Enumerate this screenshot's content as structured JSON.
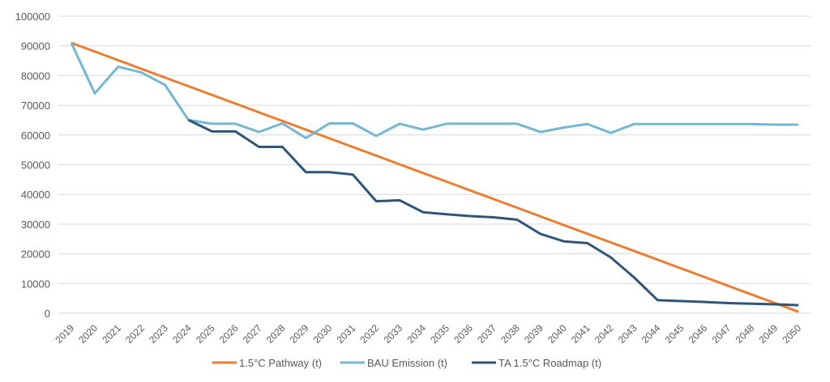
{
  "chart_data": {
    "type": "line",
    "title": "",
    "xlabel": "",
    "ylabel": "",
    "ylim": [
      0,
      100000
    ],
    "yticks": [
      "0",
      "10000",
      "20000",
      "30000",
      "40000",
      "50000",
      "60000",
      "70000",
      "80000",
      "90000",
      "100000"
    ],
    "ytick_values": [
      0,
      10000,
      20000,
      30000,
      40000,
      50000,
      60000,
      70000,
      80000,
      90000,
      100000
    ],
    "grid": true,
    "legend_position": "bottom",
    "categories": [
      "2019",
      "2020",
      "2021",
      "2022",
      "2023",
      "2024",
      "2025",
      "2026",
      "2027",
      "2028",
      "2029",
      "2030",
      "2031",
      "2032",
      "2033",
      "2034",
      "2035",
      "2036",
      "2037",
      "2038",
      "2039",
      "2040",
      "2041",
      "2042",
      "2043",
      "2044",
      "2045",
      "2046",
      "2047",
      "2048",
      "2049",
      "2050"
    ],
    "series": [
      {
        "name": "1.5°C Pathway (t)",
        "color": "#ed7d31",
        "values": [
          91000,
          88080,
          85160,
          82240,
          79320,
          76400,
          73480,
          70560,
          67640,
          64720,
          61800,
          58880,
          55960,
          53040,
          50120,
          47200,
          44280,
          41360,
          38440,
          35520,
          32600,
          29680,
          26760,
          23840,
          20920,
          18000,
          15080,
          12160,
          9240,
          6320,
          3400,
          500
        ]
      },
      {
        "name": "BAU Emission (t)",
        "color": "#72b7d4",
        "values": [
          91000,
          74000,
          83000,
          81000,
          76800,
          65000,
          63800,
          63800,
          61000,
          63900,
          59000,
          63900,
          63900,
          59700,
          63800,
          61800,
          63800,
          63800,
          63800,
          63800,
          61000,
          62500,
          63700,
          60700,
          63700,
          63700,
          63700,
          63700,
          63700,
          63700,
          63500,
          63500
        ]
      },
      {
        "name": "TA 1.5°C Roadmap (t)",
        "color": "#2f5579",
        "values": [
          null,
          null,
          null,
          null,
          null,
          65000,
          61200,
          61200,
          56000,
          56000,
          47500,
          47500,
          46700,
          37700,
          38000,
          34000,
          33300,
          32700,
          32300,
          31500,
          26700,
          24200,
          23600,
          18800,
          12000,
          4400,
          4100,
          3800,
          3400,
          3200,
          3000,
          2700
        ]
      }
    ]
  }
}
